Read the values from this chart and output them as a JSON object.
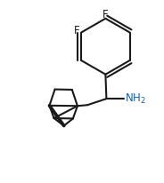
{
  "background": "#ffffff",
  "line_color": "#1a1a1a",
  "line_width": 1.5,
  "label_color_F": "#1a1a1a",
  "label_color_NH2": "#1a5fa0",
  "font_size_F": 8.5,
  "font_size_NH2": 8.5,
  "fig_width": 1.84,
  "fig_height": 2.06,
  "dpi": 100,
  "xlim": [
    0.0,
    9.0
  ],
  "ylim": [
    0.0,
    10.0
  ]
}
